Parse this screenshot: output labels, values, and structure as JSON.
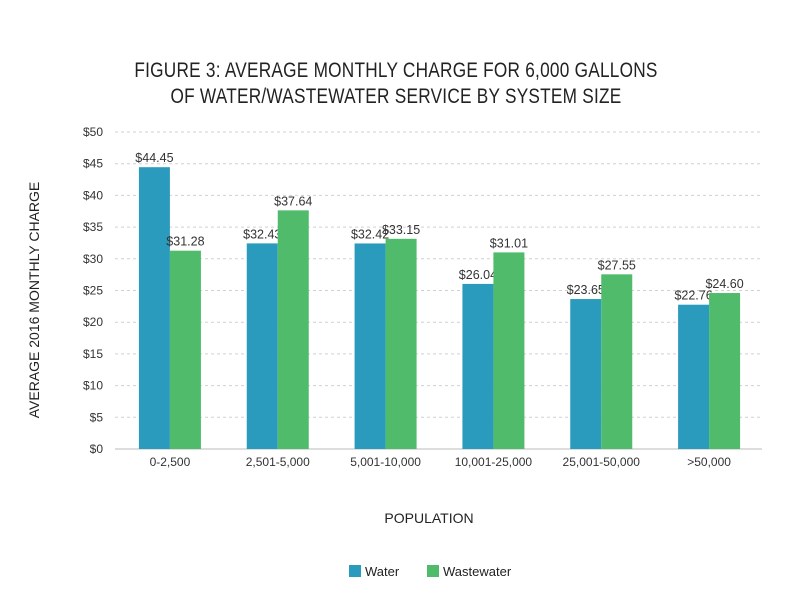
{
  "chart_data": {
    "type": "bar",
    "title": [
      "FIGURE 3: AVERAGE MONTHLY CHARGE FOR 6,000 GALLONS",
      "OF WATER/WASTEWATER SERVICE BY SYSTEM SIZE"
    ],
    "xlabel": "POPULATION",
    "ylabel": "AVERAGE 2016 MONTHLY CHARGE",
    "categories": [
      "0-2,500",
      "2,501-5,000",
      "5,001-10,000",
      "10,001-25,000",
      "25,001-50,000",
      ">50,000"
    ],
    "series": [
      {
        "name": "Water",
        "color": "#2a9bbd",
        "values": [
          44.45,
          32.43,
          32.42,
          26.04,
          23.65,
          22.76
        ],
        "labels": [
          "$44.45",
          "$32.43",
          "$32.42",
          "$26.04",
          "$23.65",
          "$22.76"
        ]
      },
      {
        "name": "Wastewater",
        "color": "#50bb6a",
        "values": [
          31.28,
          37.64,
          33.15,
          31.01,
          27.55,
          24.6
        ],
        "labels": [
          "$31.28",
          "$37.64",
          "$33.15",
          "$31.01",
          "$27.55",
          "$24.60"
        ]
      }
    ],
    "ylim": [
      0,
      50
    ],
    "yticks": [
      "$0",
      "$5",
      "$10",
      "$15",
      "$20",
      "$25",
      "$30",
      "$35",
      "$40",
      "$45",
      "$50"
    ],
    "grid": true,
    "legend": "bottom"
  }
}
